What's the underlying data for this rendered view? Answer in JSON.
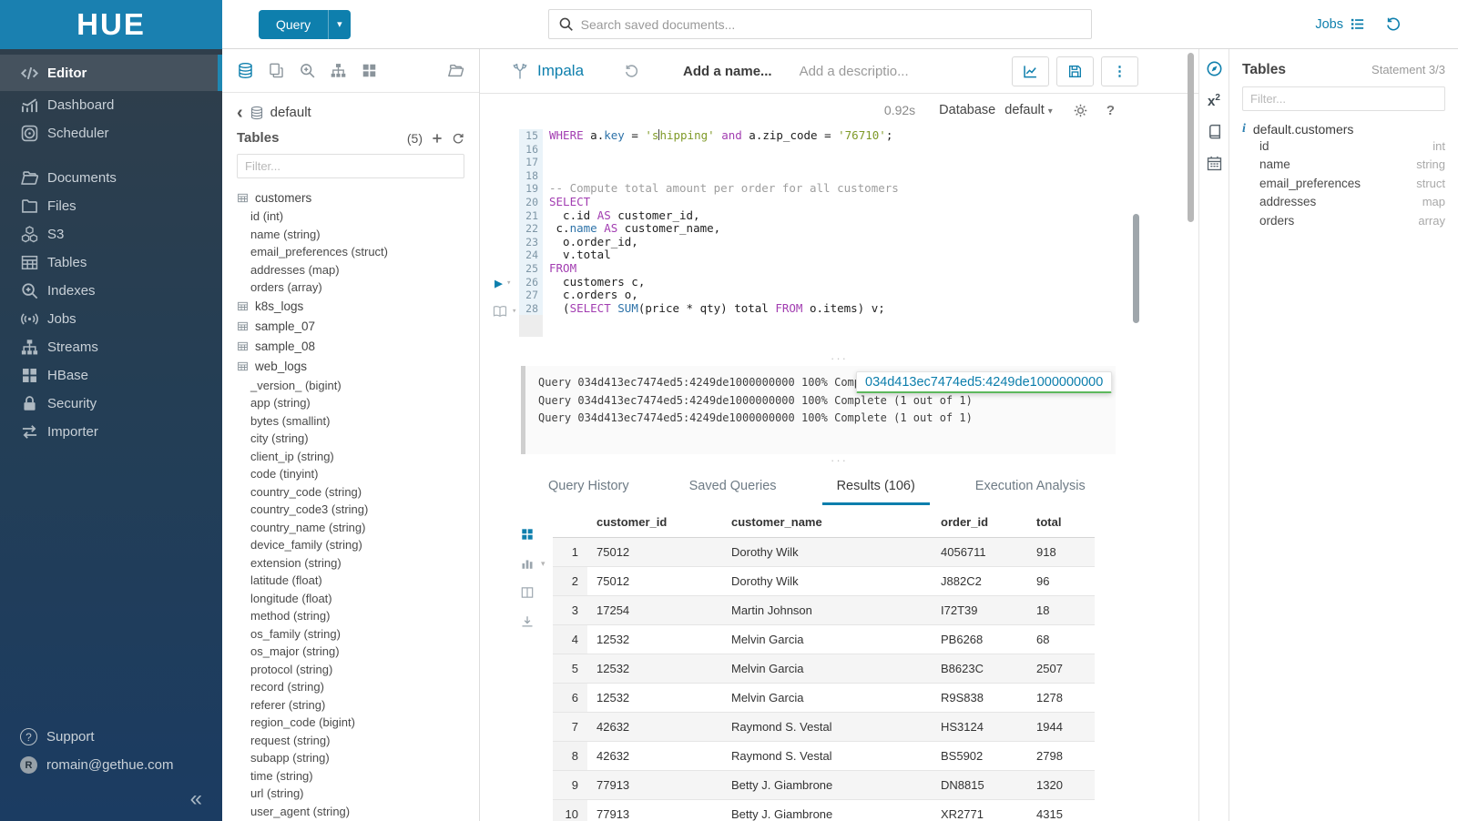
{
  "colors": {
    "accent": "#0E7FAD",
    "brand_header": "#1A80B0",
    "tooltip_underline": "#5CB85C",
    "sql_keyword": "#A23DB1",
    "sql_string": "#7F9A28",
    "sql_comment": "#9E9E9E",
    "sql_builtin": "#2D72A8"
  },
  "topbar": {
    "logo": "HUE",
    "query_button": "Query",
    "search_placeholder": "Search saved documents...",
    "jobs_label": "Jobs"
  },
  "sidebar": {
    "items": [
      {
        "label": "Editor",
        "icon": "code-icon",
        "active": true
      },
      {
        "label": "Dashboard",
        "icon": "dashboard-icon"
      },
      {
        "label": "Scheduler",
        "icon": "scheduler-icon"
      },
      {
        "label": "Documents",
        "icon": "documents-icon",
        "gap": true
      },
      {
        "label": "Files",
        "icon": "folder-icon"
      },
      {
        "label": "S3",
        "icon": "cubes-icon"
      },
      {
        "label": "Tables",
        "icon": "table-icon"
      },
      {
        "label": "Indexes",
        "icon": "magnifier-plus-icon"
      },
      {
        "label": "Jobs",
        "icon": "broadcast-icon"
      },
      {
        "label": "Streams",
        "icon": "sitemap-icon"
      },
      {
        "label": "HBase",
        "icon": "grid-icon"
      },
      {
        "label": "Security",
        "icon": "lock-icon"
      },
      {
        "label": "Importer",
        "icon": "swap-icon"
      }
    ],
    "support": "Support",
    "user": "romain@gethue.com",
    "user_initial": "R"
  },
  "db_panel": {
    "database": "default",
    "tables_label": "Tables",
    "tables_count": "(5)",
    "filter_placeholder": "Filter...",
    "tree": [
      {
        "name": "customers",
        "columns": [
          "id (int)",
          "name (string)",
          "email_preferences (struct)",
          "addresses (map)",
          "orders (array)"
        ]
      },
      {
        "name": "k8s_logs",
        "columns": []
      },
      {
        "name": "sample_07",
        "columns": []
      },
      {
        "name": "sample_08",
        "columns": []
      },
      {
        "name": "web_logs",
        "columns": [
          "_version_ (bigint)",
          "app (string)",
          "bytes (smallint)",
          "city (string)",
          "client_ip (string)",
          "code (tinyint)",
          "country_code (string)",
          "country_code3 (string)",
          "country_name (string)",
          "device_family (string)",
          "extension (string)",
          "latitude (float)",
          "longitude (float)",
          "method (string)",
          "os_family (string)",
          "os_major (string)",
          "protocol (string)",
          "record (string)",
          "referer (string)",
          "region_code (bigint)",
          "request (string)",
          "subapp (string)",
          "time (string)",
          "url (string)",
          "user_agent (string)"
        ]
      }
    ]
  },
  "editor": {
    "engine": "Impala",
    "name_placeholder": "Add a name...",
    "description_placeholder": "Add a descriptio...",
    "exec_time": "0.92s",
    "database_label": "Database",
    "database_value": "default",
    "code": [
      {
        "n": "15",
        "parts": [
          [
            "kw",
            "WHERE"
          ],
          [
            "pl",
            " a."
          ],
          [
            "fn",
            "key"
          ],
          [
            "pl",
            " = "
          ],
          [
            "str",
            "'s"
          ],
          [
            "cur",
            ""
          ],
          [
            "str",
            "hipping'"
          ],
          [
            "pl",
            " "
          ],
          [
            "kw",
            "and"
          ],
          [
            "pl",
            " a.zip_code = "
          ],
          [
            "str",
            "'76710'"
          ],
          [
            "pl",
            ";"
          ]
        ]
      },
      {
        "n": "16",
        "parts": []
      },
      {
        "n": "17",
        "parts": []
      },
      {
        "n": "18",
        "parts": []
      },
      {
        "n": "19",
        "parts": [
          [
            "cm",
            "-- Compute total amount per order for all customers"
          ]
        ]
      },
      {
        "n": "20",
        "parts": [
          [
            "kw",
            "SELECT"
          ]
        ]
      },
      {
        "n": "21",
        "parts": [
          [
            "pl",
            "  c.id "
          ],
          [
            "kw",
            "AS"
          ],
          [
            "pl",
            " customer_id,"
          ]
        ]
      },
      {
        "n": "22",
        "parts": [
          [
            "pl",
            " c."
          ],
          [
            "fn",
            "name"
          ],
          [
            "pl",
            " "
          ],
          [
            "kw",
            "AS"
          ],
          [
            "pl",
            " customer_name,"
          ]
        ]
      },
      {
        "n": "23",
        "parts": [
          [
            "pl",
            "  o.order_id,"
          ]
        ]
      },
      {
        "n": "24",
        "parts": [
          [
            "pl",
            "  v.total"
          ]
        ]
      },
      {
        "n": "25",
        "parts": [
          [
            "kw",
            "FROM"
          ]
        ]
      },
      {
        "n": "26",
        "parts": [
          [
            "pl",
            "  customers c,"
          ]
        ]
      },
      {
        "n": "27",
        "parts": [
          [
            "pl",
            "  c.orders o,"
          ]
        ]
      },
      {
        "n": "28",
        "parts": [
          [
            "pl",
            "  ("
          ],
          [
            "kw",
            "SELECT"
          ],
          [
            "pl",
            " "
          ],
          [
            "fn",
            "SUM"
          ],
          [
            "pl",
            "(price * qty) total "
          ],
          [
            "kw",
            "FROM"
          ],
          [
            "pl",
            " o.items) v;"
          ]
        ]
      }
    ]
  },
  "log": {
    "lines": [
      "Query 034d413ec7474ed5:4249de1000000000 100% Complete (1 out of 1)",
      "Query 034d413ec7474ed5:4249de1000000000 100% Complete (1 out of 1)",
      "Query 034d413ec7474ed5:4249de1000000000 100% Complete (1 out of 1)"
    ],
    "tooltip": "034d413ec7474ed5:4249de1000000000"
  },
  "tabs": {
    "items": [
      "Query History",
      "Saved Queries",
      "Results (106)",
      "Execution Analysis"
    ],
    "active_index": 2
  },
  "results": {
    "columns": [
      "customer_id",
      "customer_name",
      "order_id",
      "total"
    ],
    "rows": [
      [
        "1",
        "75012",
        "Dorothy Wilk",
        "4056711",
        "918"
      ],
      [
        "2",
        "75012",
        "Dorothy Wilk",
        "J882C2",
        "96"
      ],
      [
        "3",
        "17254",
        "Martin Johnson",
        "I72T39",
        "18"
      ],
      [
        "4",
        "12532",
        "Melvin Garcia",
        "PB6268",
        "68"
      ],
      [
        "5",
        "12532",
        "Melvin Garcia",
        "B8623C",
        "2507"
      ],
      [
        "6",
        "12532",
        "Melvin Garcia",
        "R9S838",
        "1278"
      ],
      [
        "7",
        "42632",
        "Raymond S. Vestal",
        "HS3124",
        "1944"
      ],
      [
        "8",
        "42632",
        "Raymond S. Vestal",
        "BS5902",
        "2798"
      ],
      [
        "9",
        "77913",
        "Betty J. Giambrone",
        "DN8815",
        "1320"
      ],
      [
        "10",
        "77913",
        "Betty J. Giambrone",
        "XR2771",
        "4315"
      ]
    ]
  },
  "right_panel": {
    "title": "Tables",
    "statement": "Statement 3/3",
    "filter_placeholder": "Filter...",
    "table_name": "default.customers",
    "columns": [
      {
        "name": "id",
        "type": "int"
      },
      {
        "name": "name",
        "type": "string"
      },
      {
        "name": "email_preferences",
        "type": "struct"
      },
      {
        "name": "addresses",
        "type": "map"
      },
      {
        "name": "orders",
        "type": "array"
      }
    ]
  }
}
